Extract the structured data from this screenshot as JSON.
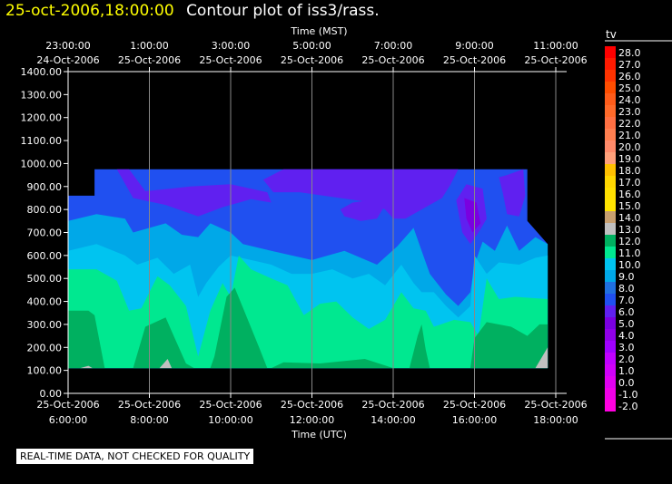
{
  "header": {
    "timestamp": "25-oct-2006,18:00:00",
    "title": "Contour plot of iss3/rass."
  },
  "notice": "REAL-TIME DATA, NOT CHECKED FOR QUALITY",
  "colorbar": {
    "title": "tv",
    "labels": [
      "28.0",
      "27.0",
      "26.0",
      "25.0",
      "24.0",
      "23.0",
      "22.0",
      "21.0",
      "20.0",
      "19.0",
      "18.0",
      "17.0",
      "16.0",
      "15.0",
      "14.0",
      "13.0",
      "12.0",
      "11.0",
      "10.0",
      "9.0",
      "8.0",
      "7.0",
      "6.0",
      "5.0",
      "4.0",
      "3.0",
      "2.0",
      "1.0",
      "0.0",
      "-1.0",
      "-2.0"
    ],
    "colors": [
      "#ff0000",
      "#ff1a00",
      "#ff3300",
      "#ff4d00",
      "#ff5c1a",
      "#ff6a2a",
      "#ff7043",
      "#ff7f50",
      "#ff8a6a",
      "#ffa07a",
      "#ffc000",
      "#ffd700",
      "#ffe000",
      "#ffe400",
      "#c8a070",
      "#c0c0c0",
      "#00b060",
      "#00e890",
      "#00c4f0",
      "#00a8e8",
      "#2070e0",
      "#2050f0",
      "#6020f0",
      "#7a00e0",
      "#9000e8",
      "#a000ff",
      "#c000ff",
      "#d000f8",
      "#e000f0",
      "#f000e8",
      "#ff00e0"
    ]
  },
  "chart_data": {
    "type": "heatmap",
    "title": "Contour plot of iss3/rass.",
    "xlabel_top": "Time (MST)",
    "xlabel_bottom": "Time (UTC)",
    "ylabel": "",
    "ylim": [
      0,
      1400
    ],
    "yticks": [
      "0.00",
      "100.00",
      "200.00",
      "300.00",
      "400.00",
      "500.00",
      "600.00",
      "700.00",
      "800.00",
      "900.00",
      "1000.00",
      "1100.00",
      "1200.00",
      "1300.00",
      "1400.00"
    ],
    "xlim_hours_utc": [
      6,
      18
    ],
    "xticks_bottom": [
      {
        "date": "25-Oct-2006",
        "time": "6:00:00",
        "utc": 6
      },
      {
        "date": "25-Oct-2006",
        "time": "8:00:00",
        "utc": 8
      },
      {
        "date": "25-Oct-2006",
        "time": "10:00:00",
        "utc": 10
      },
      {
        "date": "25-Oct-2006",
        "time": "12:00:00",
        "utc": 12
      },
      {
        "date": "25-Oct-2006",
        "time": "14:00:00",
        "utc": 14
      },
      {
        "date": "25-Oct-2006",
        "time": "16:00:00",
        "utc": 16
      },
      {
        "date": "25-Oct-2006",
        "time": "18:00:00",
        "utc": 18
      }
    ],
    "xticks_top": [
      {
        "time": "23:00:00",
        "date": "24-Oct-2006",
        "utc": 6
      },
      {
        "time": "1:00:00",
        "date": "25-Oct-2006",
        "utc": 8
      },
      {
        "time": "3:00:00",
        "date": "25-Oct-2006",
        "utc": 10
      },
      {
        "time": "5:00:00",
        "date": "25-Oct-2006",
        "utc": 12
      },
      {
        "time": "7:00:00",
        "date": "25-Oct-2006",
        "utc": 14
      },
      {
        "time": "9:00:00",
        "date": "25-Oct-2006",
        "utc": 16
      },
      {
        "time": "11:00:00",
        "date": "25-Oct-2006",
        "utc": 18
      }
    ],
    "grid": true,
    "data_extent": {
      "x_start_utc": 6.0,
      "x_end_utc": 17.8,
      "y_bottom": 110,
      "y_top": 975
    },
    "regions": [
      {
        "level": "7.0",
        "color": "#2050f0",
        "points": [
          [
            6.0,
            975
          ],
          [
            17.3,
            975
          ],
          [
            17.3,
            750
          ],
          [
            17.8,
            650
          ],
          [
            17.8,
            110
          ],
          [
            6.0,
            110
          ],
          [
            6.0,
            860
          ],
          [
            6.65,
            860
          ],
          [
            6.65,
            975
          ]
        ]
      },
      {
        "level": "6.0",
        "color": "#6020f0",
        "points": [
          [
            6.65,
            975
          ],
          [
            7.2,
            975
          ],
          [
            7.6,
            850
          ],
          [
            8.4,
            820
          ],
          [
            9.2,
            770
          ],
          [
            9.8,
            810
          ],
          [
            10.5,
            845
          ],
          [
            11.0,
            830
          ],
          [
            10.9,
            875
          ],
          [
            10.0,
            910
          ],
          [
            9.0,
            900
          ],
          [
            8.5,
            890
          ],
          [
            7.9,
            880
          ],
          [
            7.5,
            975
          ],
          [
            9.0,
            975
          ],
          [
            10.0,
            975
          ],
          [
            11.0,
            975
          ],
          [
            12.0,
            975
          ],
          [
            13.0,
            975
          ],
          [
            14.0,
            975
          ],
          [
            15.0,
            975
          ],
          [
            15.6,
            975
          ],
          [
            15.4,
            905
          ],
          [
            15.2,
            850
          ],
          [
            14.7,
            800
          ],
          [
            14.3,
            760
          ],
          [
            14.0,
            760
          ],
          [
            13.8,
            800
          ],
          [
            13.3,
            835
          ],
          [
            12.5,
            855
          ],
          [
            11.7,
            875
          ],
          [
            11.05,
            875
          ],
          [
            10.8,
            930
          ],
          [
            11.3,
            975
          ]
        ]
      },
      {
        "level": "6.0",
        "color": "#6020f0",
        "points": [
          [
            12.7,
            800
          ],
          [
            13.0,
            830
          ],
          [
            13.4,
            840
          ],
          [
            13.8,
            820
          ],
          [
            13.6,
            760
          ],
          [
            13.2,
            750
          ],
          [
            12.8,
            770
          ]
        ]
      },
      {
        "level": "6.0",
        "color": "#6020f0",
        "points": [
          [
            15.55,
            840
          ],
          [
            15.8,
            910
          ],
          [
            16.2,
            890
          ],
          [
            16.3,
            760
          ],
          [
            16.1,
            700
          ],
          [
            15.9,
            650
          ],
          [
            15.7,
            700
          ]
        ]
      },
      {
        "level": "6.0",
        "color": "#6020f0",
        "points": [
          [
            16.6,
            940
          ],
          [
            16.8,
            950
          ],
          [
            17.2,
            975
          ],
          [
            17.25,
            860
          ],
          [
            17.1,
            770
          ],
          [
            16.8,
            780
          ],
          [
            16.7,
            870
          ]
        ]
      },
      {
        "level": "5.0",
        "color": "#7a00e0",
        "points": [
          [
            15.75,
            850
          ],
          [
            16.05,
            830
          ],
          [
            16.15,
            740
          ],
          [
            15.95,
            700
          ],
          [
            15.8,
            760
          ]
        ]
      },
      {
        "level": "9.0",
        "color": "#00a8e8",
        "points": [
          [
            6.0,
            750
          ],
          [
            6.7,
            780
          ],
          [
            7.4,
            760
          ],
          [
            7.6,
            700
          ],
          [
            8.4,
            740
          ],
          [
            8.8,
            690
          ],
          [
            9.2,
            680
          ],
          [
            9.5,
            740
          ],
          [
            10.0,
            700
          ],
          [
            10.3,
            650
          ],
          [
            11.0,
            620
          ],
          [
            12.0,
            580
          ],
          [
            12.8,
            620
          ],
          [
            13.6,
            560
          ],
          [
            14.1,
            640
          ],
          [
            14.5,
            720
          ],
          [
            14.7,
            620
          ],
          [
            14.9,
            520
          ],
          [
            15.3,
            430
          ],
          [
            15.6,
            380
          ],
          [
            15.9,
            440
          ],
          [
            16.0,
            560
          ],
          [
            16.2,
            660
          ],
          [
            16.5,
            620
          ],
          [
            16.8,
            730
          ],
          [
            17.1,
            620
          ],
          [
            17.5,
            680
          ],
          [
            17.8,
            650
          ],
          [
            17.8,
            110
          ],
          [
            6.0,
            110
          ]
        ]
      },
      {
        "level": "10.0",
        "color": "#00c4f0",
        "points": [
          [
            6.0,
            620
          ],
          [
            6.7,
            650
          ],
          [
            7.4,
            600
          ],
          [
            7.7,
            560
          ],
          [
            8.2,
            590
          ],
          [
            8.6,
            520
          ],
          [
            9.0,
            560
          ],
          [
            9.2,
            420
          ],
          [
            9.4,
            480
          ],
          [
            9.7,
            550
          ],
          [
            10.0,
            600
          ],
          [
            10.5,
            580
          ],
          [
            11.0,
            560
          ],
          [
            11.5,
            520
          ],
          [
            12.0,
            520
          ],
          [
            12.5,
            540
          ],
          [
            13.0,
            500
          ],
          [
            13.4,
            520
          ],
          [
            13.8,
            470
          ],
          [
            14.2,
            560
          ],
          [
            14.5,
            480
          ],
          [
            14.7,
            440
          ],
          [
            15.0,
            440
          ],
          [
            15.3,
            380
          ],
          [
            15.6,
            330
          ],
          [
            15.9,
            380
          ],
          [
            16.0,
            600
          ],
          [
            16.3,
            520
          ],
          [
            16.6,
            570
          ],
          [
            17.1,
            560
          ],
          [
            17.5,
            590
          ],
          [
            17.8,
            600
          ],
          [
            17.8,
            110
          ],
          [
            6.0,
            110
          ]
        ]
      },
      {
        "level": "11.0",
        "color": "#00e890",
        "points": [
          [
            6.0,
            540
          ],
          [
            6.7,
            540
          ],
          [
            7.2,
            490
          ],
          [
            7.5,
            360
          ],
          [
            7.8,
            370
          ],
          [
            8.2,
            510
          ],
          [
            8.5,
            470
          ],
          [
            8.9,
            380
          ],
          [
            9.2,
            160
          ],
          [
            9.5,
            360
          ],
          [
            9.8,
            480
          ],
          [
            10.0,
            420
          ],
          [
            10.2,
            600
          ],
          [
            10.5,
            540
          ],
          [
            11.0,
            500
          ],
          [
            11.4,
            470
          ],
          [
            11.8,
            340
          ],
          [
            12.2,
            390
          ],
          [
            12.6,
            400
          ],
          [
            13.0,
            330
          ],
          [
            13.4,
            280
          ],
          [
            13.8,
            320
          ],
          [
            14.2,
            440
          ],
          [
            14.5,
            370
          ],
          [
            14.8,
            360
          ],
          [
            15.0,
            290
          ],
          [
            15.5,
            320
          ],
          [
            15.9,
            310
          ],
          [
            16.1,
            250
          ],
          [
            16.3,
            500
          ],
          [
            16.6,
            410
          ],
          [
            17.0,
            420
          ],
          [
            17.8,
            410
          ],
          [
            17.8,
            110
          ],
          [
            6.0,
            110
          ]
        ]
      },
      {
        "level": "12.0",
        "color": "#00b060",
        "points": [
          [
            6.0,
            110
          ],
          [
            6.0,
            360
          ],
          [
            6.5,
            360
          ],
          [
            6.65,
            340
          ],
          [
            6.9,
            110
          ]
        ]
      },
      {
        "level": "12.0",
        "color": "#00b060",
        "points": [
          [
            7.6,
            110
          ],
          [
            7.9,
            290
          ],
          [
            8.4,
            330
          ],
          [
            8.6,
            250
          ],
          [
            8.9,
            130
          ],
          [
            9.1,
            110
          ]
        ]
      },
      {
        "level": "12.0",
        "color": "#00b060",
        "points": [
          [
            9.5,
            110
          ],
          [
            9.6,
            160
          ],
          [
            9.9,
            420
          ],
          [
            10.1,
            460
          ],
          [
            10.4,
            330
          ],
          [
            10.7,
            200
          ],
          [
            10.9,
            110
          ]
        ]
      },
      {
        "level": "12.0",
        "color": "#00b060",
        "points": [
          [
            11.0,
            110
          ],
          [
            11.3,
            135
          ],
          [
            12.2,
            130
          ],
          [
            13.3,
            150
          ],
          [
            14.0,
            110
          ]
        ]
      },
      {
        "level": "12.0",
        "color": "#00b060",
        "points": [
          [
            14.4,
            110
          ],
          [
            14.6,
            250
          ],
          [
            14.7,
            300
          ],
          [
            14.8,
            190
          ],
          [
            14.9,
            110
          ]
        ]
      },
      {
        "level": "12.0",
        "color": "#00b060",
        "points": [
          [
            15.9,
            110
          ],
          [
            16.0,
            240
          ],
          [
            16.3,
            310
          ],
          [
            16.9,
            290
          ],
          [
            17.3,
            250
          ],
          [
            17.6,
            300
          ],
          [
            17.8,
            300
          ],
          [
            17.8,
            110
          ]
        ]
      },
      {
        "level": "13.0",
        "color": "#c0c0c0",
        "points": [
          [
            6.3,
            110
          ],
          [
            6.5,
            120
          ],
          [
            6.6,
            110
          ]
        ]
      },
      {
        "level": "13.0",
        "color": "#c0c0c0",
        "points": [
          [
            8.25,
            110
          ],
          [
            8.45,
            150
          ],
          [
            8.55,
            110
          ]
        ]
      },
      {
        "level": "13.0",
        "color": "#c0c0c0",
        "points": [
          [
            17.5,
            110
          ],
          [
            17.8,
            200
          ],
          [
            17.8,
            110
          ]
        ]
      }
    ]
  }
}
